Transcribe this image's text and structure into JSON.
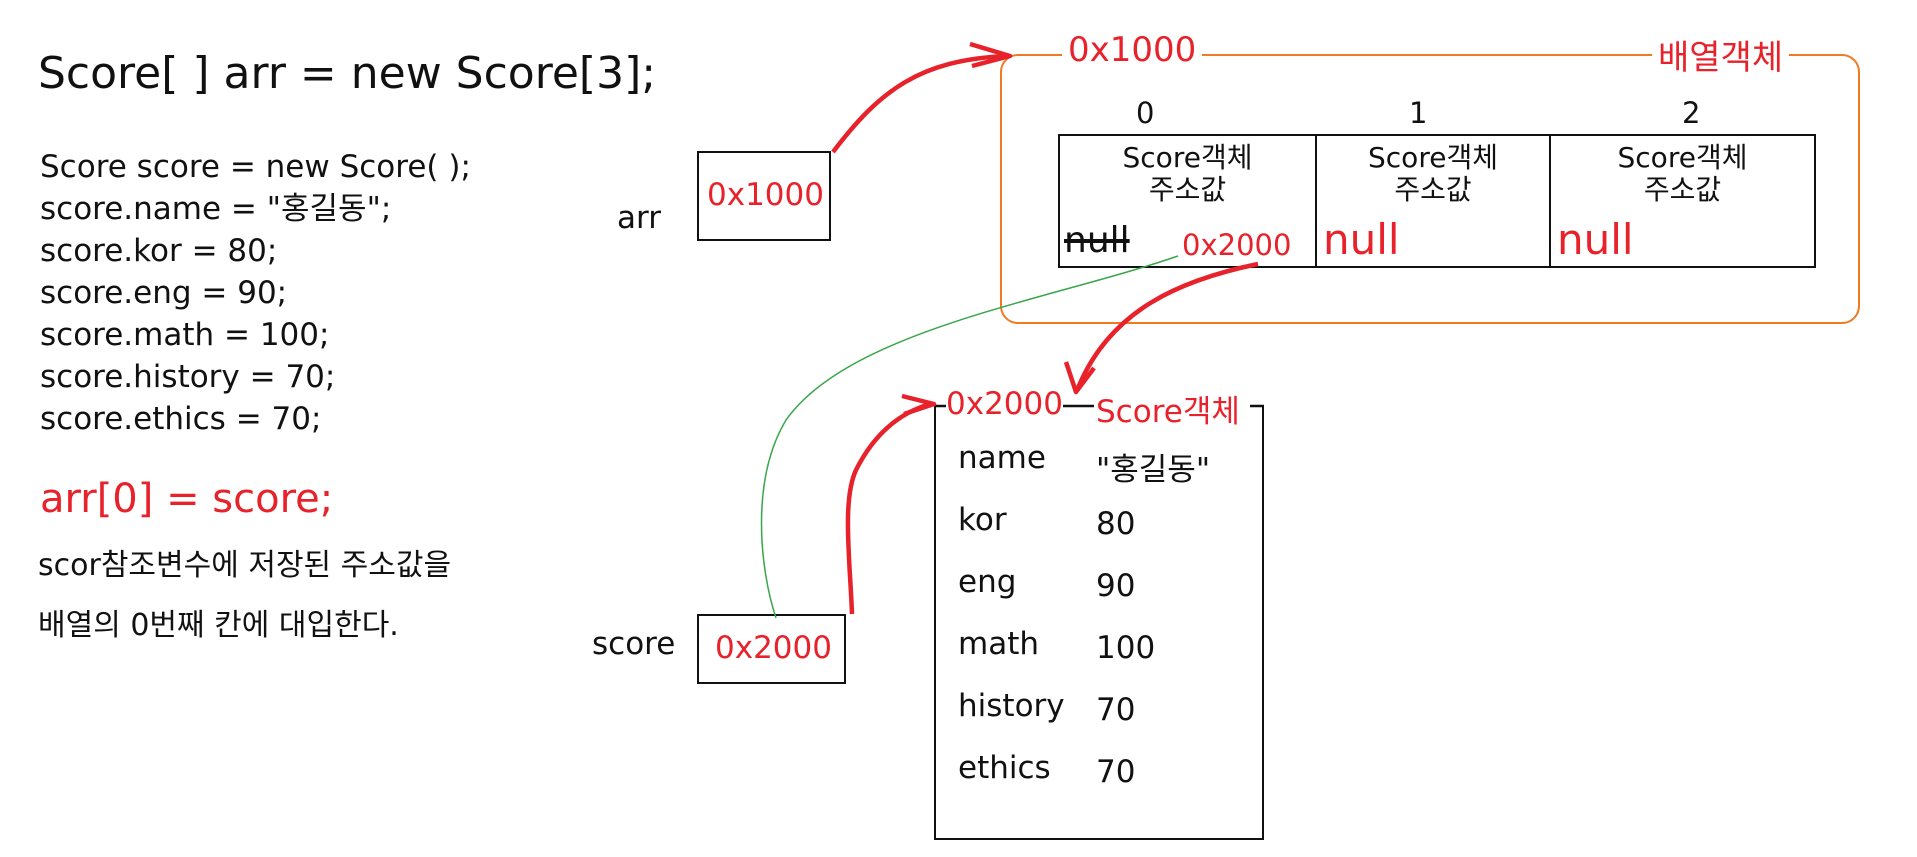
{
  "code": {
    "declaration": "Score[ ] arr = new Score[3];",
    "lines": [
      "Score score = new Score( );",
      "score.name = \"홍길동\";",
      "score.kor = 80;",
      "score.eng = 90;",
      "score.math = 100;",
      "score.history = 70;",
      "score.ethics = 70;"
    ],
    "assignment": "arr[0] = score;",
    "explanation": [
      "scor참조변수에 저장된 주소값을",
      "배열의 0번째 칸에 대입한다."
    ]
  },
  "variables": {
    "arr": {
      "name": "arr",
      "value": "0x1000"
    },
    "score": {
      "name": "score",
      "value": "0x2000"
    }
  },
  "array_object": {
    "address": "0x1000",
    "label": "배열객체",
    "indices": [
      "0",
      "1",
      "2"
    ],
    "cells": [
      {
        "title_line1": "Score객체",
        "title_line2": "주소값",
        "old_value": "null",
        "new_value": "0x2000"
      },
      {
        "title_line1": "Score객체",
        "title_line2": "주소값",
        "value": "null"
      },
      {
        "title_line1": "Score객체",
        "title_line2": "주소값",
        "value": "null"
      }
    ]
  },
  "score_object": {
    "address": "0x2000",
    "label": "Score객체",
    "fields": [
      {
        "name": "name",
        "value": "\"홍길동\""
      },
      {
        "name": "kor",
        "value": "80"
      },
      {
        "name": "eng",
        "value": "90"
      },
      {
        "name": "math",
        "value": "100"
      },
      {
        "name": "history",
        "value": "70"
      },
      {
        "name": "ethics",
        "value": "70"
      }
    ]
  },
  "colors": {
    "highlight": "#e8222b",
    "frame": "#f07a22",
    "arrow": "#e8222b",
    "green_link": "#3aa64a"
  }
}
